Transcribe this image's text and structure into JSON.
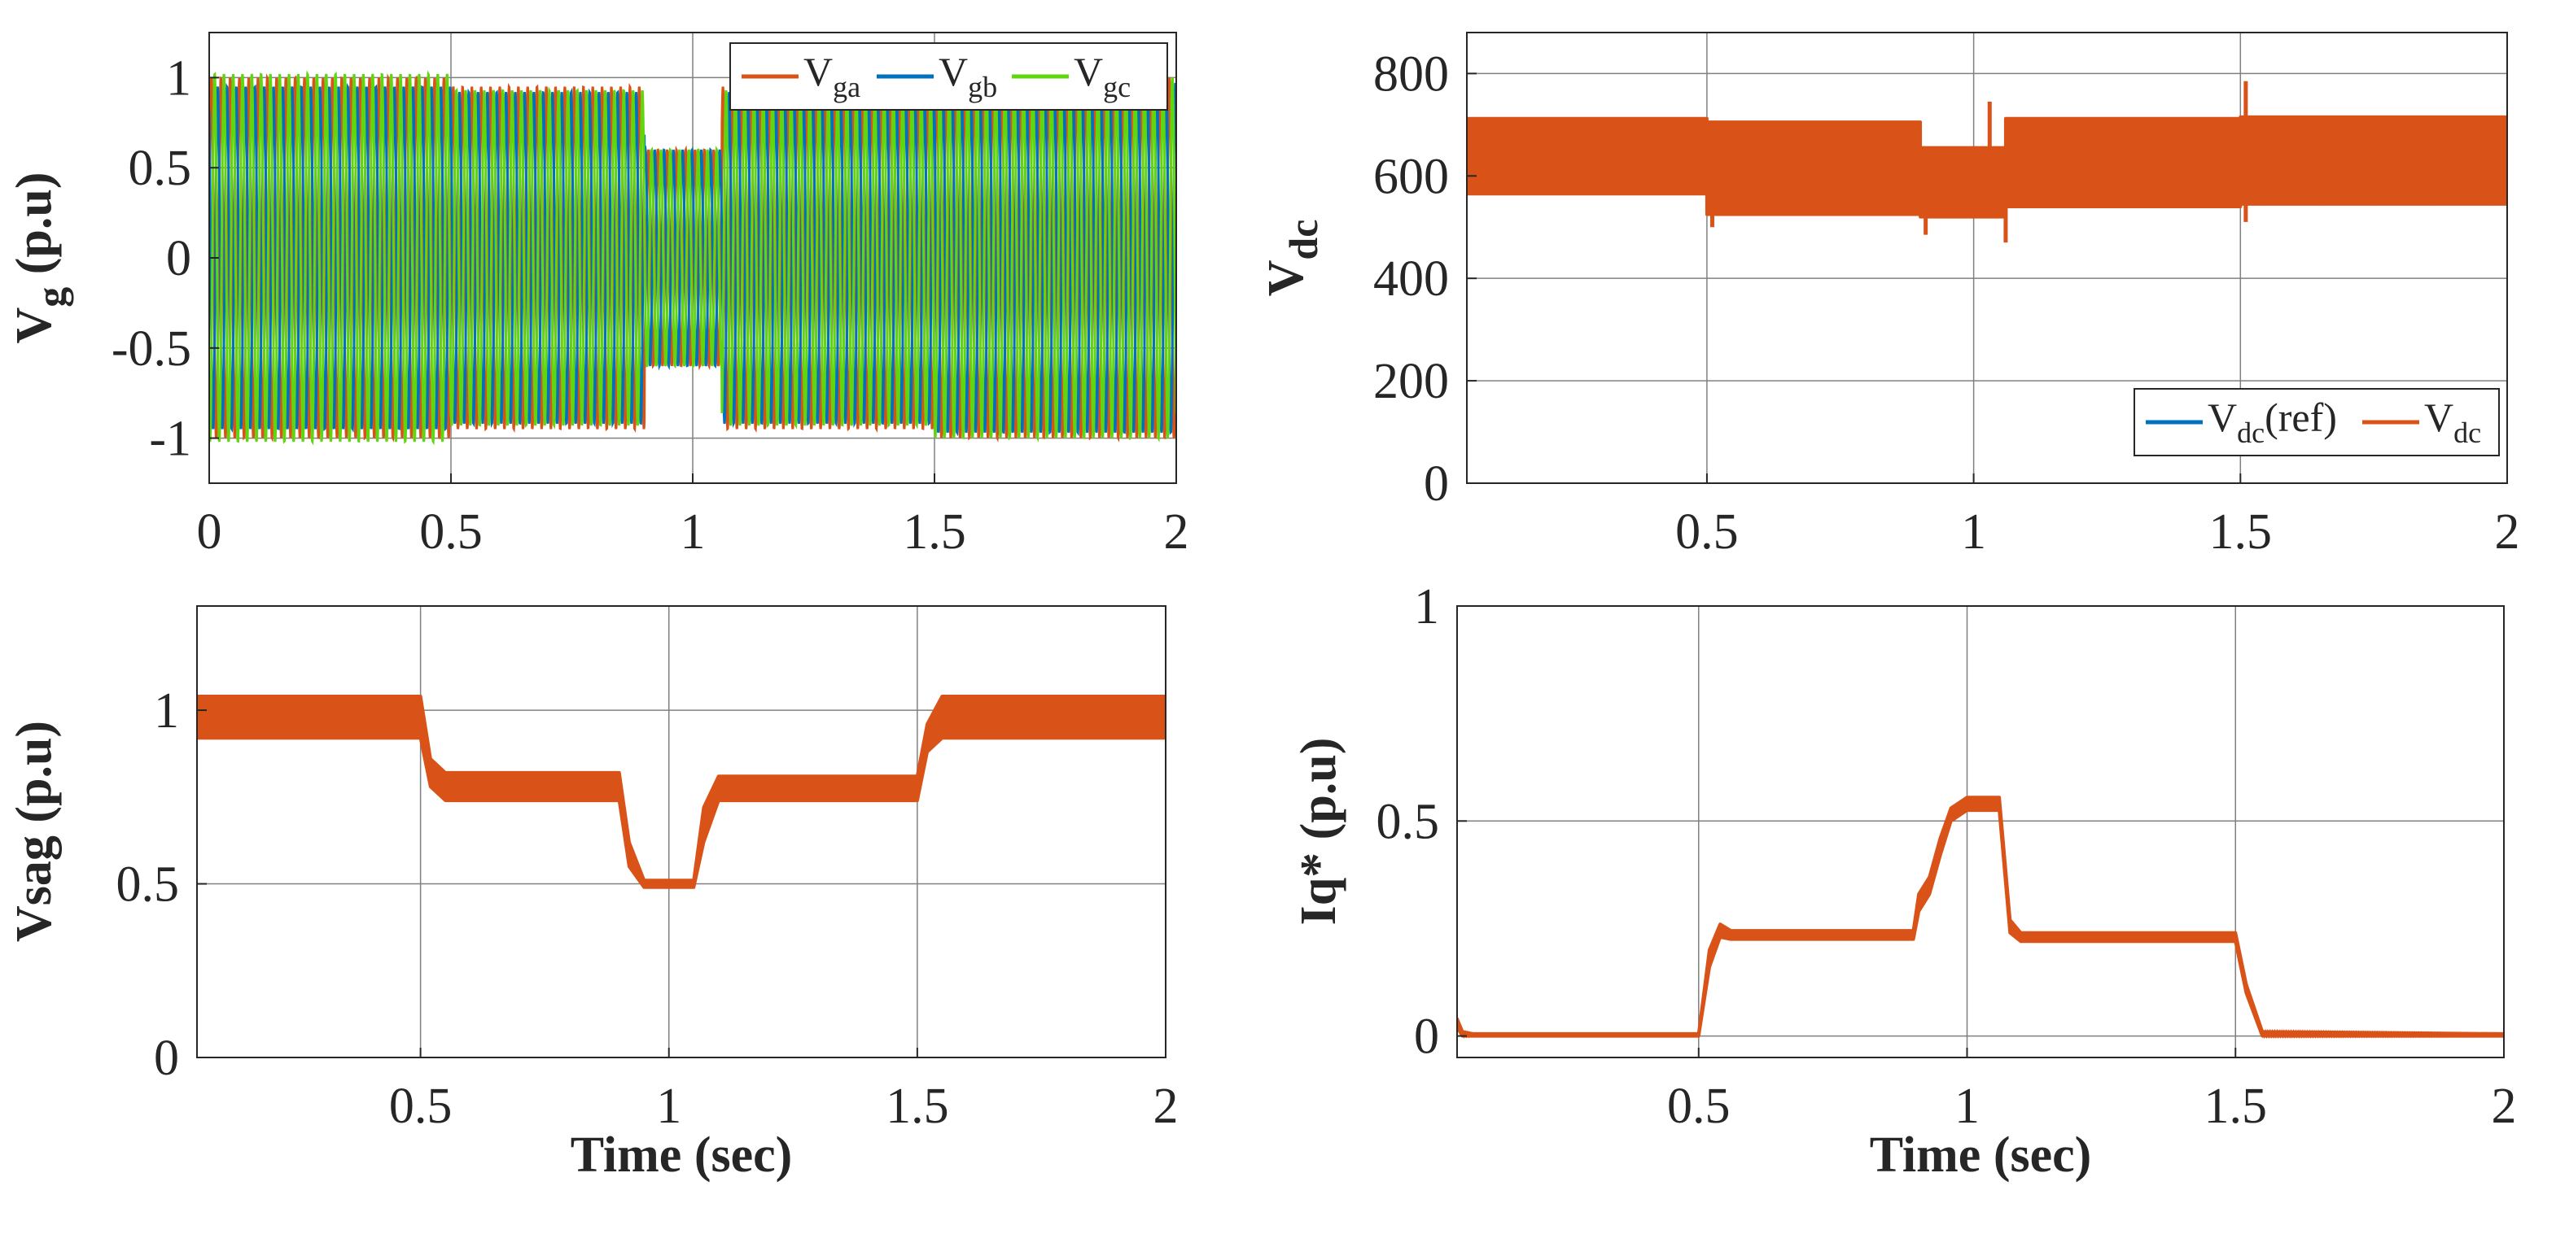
{
  "colors": {
    "orange": "#D95319",
    "blue": "#0072BD",
    "green": "#5FD60E",
    "grid": "#808080",
    "axis": "#262626"
  },
  "chart_data": [
    {
      "type": "line",
      "ylabel": {
        "main": "V",
        "sub": "g",
        "rest": " (p.u)"
      },
      "xlim": [
        0,
        2
      ],
      "ylim": [
        -1.25,
        1.25
      ],
      "xticks": [
        0,
        0.5,
        1,
        1.5,
        2
      ],
      "xtick_labels": [
        "0",
        "0.5",
        "1",
        "1.5",
        "2"
      ],
      "yticks": [
        -1,
        -0.5,
        0,
        0.5,
        1
      ],
      "ytick_labels": [
        "-1",
        "-0.5",
        "0",
        "0.5",
        "1"
      ],
      "grid": true,
      "legend_position": "top-right",
      "series": [
        {
          "name": {
            "main": "V",
            "sub": "ga"
          },
          "color": "orange",
          "envelope": {
            "x": [
              0,
              0.5,
              0.5,
              0.9,
              0.9,
              1.06,
              1.06,
              1.5,
              1.5,
              2
            ],
            "amp": [
              1.0,
              1.0,
              0.95,
              0.95,
              0.6,
              0.6,
              0.95,
              0.95,
              1.0,
              1.0
            ]
          }
        },
        {
          "name": {
            "main": "V",
            "sub": "gb"
          },
          "color": "blue",
          "envelope": {
            "x": [
              0,
              0.5,
              0.5,
              0.9,
              0.9,
              1.06,
              1.06,
              1.5,
              1.5,
              2
            ],
            "amp": [
              0.95,
              0.95,
              0.92,
              0.92,
              0.6,
              0.6,
              0.92,
              0.92,
              0.97,
              0.97
            ]
          }
        },
        {
          "name": {
            "main": "V",
            "sub": "gc"
          },
          "color": "green",
          "envelope": {
            "x": [
              0,
              0.5,
              0.5,
              0.9,
              0.9,
              1.06,
              1.06,
              1.5,
              1.5,
              2
            ],
            "amp": [
              1.02,
              1.02,
              0.93,
              0.93,
              0.6,
              0.6,
              0.93,
              0.93,
              1.0,
              1.0
            ]
          }
        }
      ]
    },
    {
      "type": "line",
      "ylabel": {
        "main": "V",
        "sub": "dc",
        "rest": ""
      },
      "xlim": [
        0.05,
        2
      ],
      "ylim": [
        0,
        880
      ],
      "xticks": [
        0.5,
        1,
        1.5,
        2
      ],
      "xtick_labels": [
        "0.5",
        "1",
        "1.5",
        "2"
      ],
      "yticks": [
        0,
        200,
        400,
        600,
        800
      ],
      "ytick_labels": [
        "0",
        "200",
        "400",
        "600",
        "800"
      ],
      "grid": true,
      "legend_position": "bottom-right",
      "series": [
        {
          "name": {
            "main": "V",
            "sub": "dc",
            "rest": "(ref)"
          },
          "color": "blue",
          "values": []
        },
        {
          "name": {
            "main": "V",
            "sub": "dc",
            "rest": ""
          },
          "color": "orange",
          "band": {
            "x": [
              0.05,
              0.5,
              0.5,
              0.9,
              0.9,
              1.06,
              1.06,
              1.5,
              1.5,
              2
            ],
            "upper": [
              712,
              712,
              705,
              705,
              655,
              655,
              712,
              712,
              715,
              715
            ],
            "lower": [
              565,
              565,
              525,
              525,
              520,
              520,
              540,
              540,
              545,
              545
            ]
          },
          "spikes": [
            {
              "x": 0.51,
              "y": 500
            },
            {
              "x": 0.91,
              "y": 485
            },
            {
              "x": 1.03,
              "y": 745
            },
            {
              "x": 1.06,
              "y": 470
            },
            {
              "x": 1.51,
              "y": 785
            },
            {
              "x": 1.51,
              "y": 510
            }
          ]
        }
      ]
    },
    {
      "type": "line",
      "ylabel": {
        "main": "Vsag (p.u)",
        "sub": "",
        "rest": ""
      },
      "xlabel": "Time (sec)",
      "xlim": [
        0.05,
        2
      ],
      "ylim": [
        0,
        1.3
      ],
      "xticks": [
        0.5,
        1,
        1.5,
        2
      ],
      "xtick_labels": [
        "0.5",
        "1",
        "1.5",
        "2"
      ],
      "yticks": [
        0,
        0.5,
        1
      ],
      "ytick_labels": [
        "0",
        "0.5",
        "1"
      ],
      "grid": true,
      "series": [
        {
          "name": "",
          "color": "orange",
          "band": {
            "x": [
              0.05,
              0.5,
              0.52,
              0.55,
              0.9,
              0.92,
              0.95,
              1.05,
              1.07,
              1.1,
              1.5,
              1.52,
              1.55,
              2
            ],
            "upper": [
              1.04,
              1.04,
              0.86,
              0.82,
              0.82,
              0.62,
              0.51,
              0.51,
              0.72,
              0.81,
              0.81,
              0.96,
              1.04,
              1.04
            ],
            "lower": [
              0.92,
              0.92,
              0.78,
              0.74,
              0.74,
              0.55,
              0.49,
              0.49,
              0.62,
              0.74,
              0.74,
              0.88,
              0.92,
              0.92
            ]
          }
        }
      ]
    },
    {
      "type": "line",
      "ylabel": {
        "main": "Iq* (p.u)",
        "sub": "",
        "rest": ""
      },
      "xlabel": "Time (sec)",
      "xlim": [
        0.05,
        2
      ],
      "ylim": [
        -0.05,
        1
      ],
      "xticks": [
        0.5,
        1,
        1.5,
        2
      ],
      "xtick_labels": [
        "0.5",
        "1",
        "1.5",
        "2"
      ],
      "yticks": [
        0,
        0.5,
        1
      ],
      "ytick_labels": [
        "0",
        "0.5",
        "1"
      ],
      "grid": true,
      "series": [
        {
          "name": "",
          "color": "orange",
          "band": {
            "x": [
              0.05,
              0.06,
              0.08,
              0.5,
              0.52,
              0.54,
              0.56,
              0.9,
              0.91,
              0.93,
              0.95,
              0.97,
              1.0,
              1.06,
              1.08,
              1.1,
              1.5,
              1.52,
              1.55,
              2
            ],
            "upper": [
              0.04,
              0.01,
              0.005,
              0.005,
              0.2,
              0.26,
              0.245,
              0.245,
              0.33,
              0.37,
              0.46,
              0.53,
              0.555,
              0.555,
              0.27,
              0.24,
              0.24,
              0.12,
              0.01,
              0.005
            ],
            "lower": [
              0.02,
              0.0,
              0.0,
              0.0,
              0.16,
              0.23,
              0.225,
              0.225,
              0.29,
              0.33,
              0.42,
              0.5,
              0.525,
              0.525,
              0.24,
              0.22,
              0.22,
              0.1,
              0.0,
              0.0
            ]
          }
        }
      ]
    }
  ]
}
